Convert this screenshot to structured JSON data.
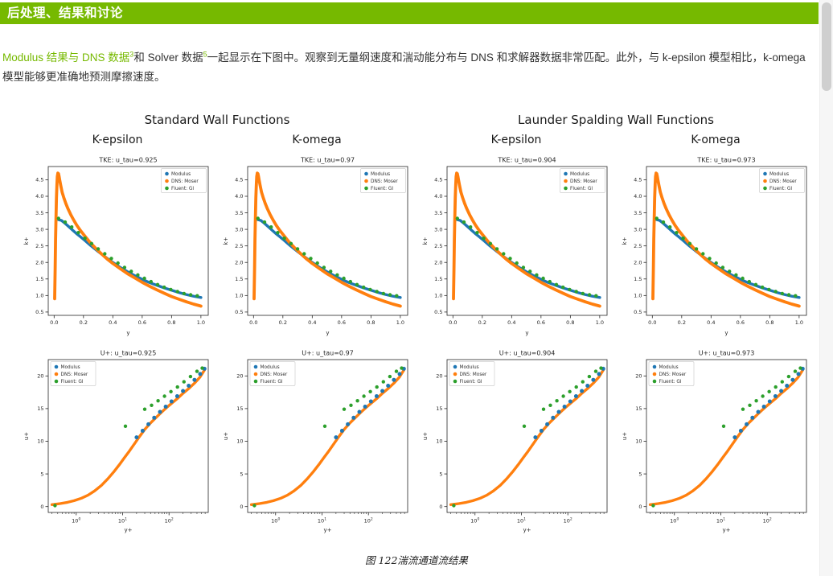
{
  "header": {
    "title": "后处理、结果和讨论"
  },
  "paragraph": {
    "link1": "Modulus 结果与 DNS 数据",
    "sup1": "3",
    "text2": "和 Solver 数据",
    "sup2": "5",
    "text3": "一起显示在下图中。观察到无量纲速度和湍动能分布与 DNS 和求解器数据非常匹配。此外，与 k-epsilon 模型相比，k-omega 模型能够更准确地预测摩擦速度。"
  },
  "figure": {
    "caption": "图 122湍流通道流结果",
    "group_titles": [
      "Standard Wall Functions",
      "Launder Spalding Wall Functions"
    ],
    "column_titles": [
      "K-epsilon",
      "K-omega",
      "K-epsilon",
      "K-omega"
    ]
  },
  "chart_data": {
    "type": "scatter",
    "layout": "2 rows x 4 columns; all four columns in a row share the same series data",
    "colors": {
      "modulus": "#1f77b4",
      "dns": "#ff7f0e",
      "fluent": "#2ca02c"
    },
    "rows": [
      {
        "name": "tke",
        "titles": [
          "TKE: u_tau=0.925",
          "TKE: u_tau=0.97",
          "TKE: u_tau=0.904",
          "TKE: u_tau=0.973"
        ],
        "xlabel": "y",
        "ylabel": "k+",
        "xscale": "linear",
        "xlim": [
          -0.04,
          1.05
        ],
        "ylim": [
          0.4,
          4.9
        ],
        "xticks": [
          0.0,
          0.2,
          0.4,
          0.6,
          0.8,
          1.0
        ],
        "yticks": [
          0.5,
          1.0,
          1.5,
          2.0,
          2.5,
          3.0,
          3.5,
          4.0,
          4.5
        ],
        "ytick_decimals": 1,
        "legend_position": "ne",
        "legend": [
          {
            "label": "Modulus",
            "color": "#1f77b4"
          },
          {
            "label": "DNS: Moser",
            "color": "#ff7f0e"
          },
          {
            "label": "Fluent: GI",
            "color": "#2ca02c"
          }
        ],
        "series": [
          {
            "name": "Modulus",
            "color": "#1f77b4",
            "style": "line",
            "width": 3.4,
            "x": [
              0.025,
              0.05,
              0.075,
              0.1,
              0.125,
              0.15,
              0.175,
              0.2,
              0.25,
              0.3,
              0.35,
              0.4,
              0.45,
              0.5,
              0.55,
              0.6,
              0.65,
              0.7,
              0.75,
              0.8,
              0.85,
              0.9,
              0.95,
              1.0
            ],
            "y": [
              3.3,
              3.27,
              3.18,
              3.08,
              2.98,
              2.88,
              2.79,
              2.7,
              2.51,
              2.33,
              2.16,
              2.0,
              1.85,
              1.72,
              1.6,
              1.49,
              1.39,
              1.31,
              1.23,
              1.16,
              1.09,
              1.03,
              0.98,
              0.94
            ]
          },
          {
            "name": "DNS: Moser",
            "color": "#ff7f0e",
            "style": "line",
            "width": 3.8,
            "x": [
              0.004,
              0.007,
              0.01,
              0.013,
              0.016,
              0.019,
              0.022,
              0.026,
              0.03,
              0.034,
              0.038,
              0.045,
              0.055,
              0.065,
              0.08,
              0.095,
              0.115,
              0.135,
              0.155,
              0.175,
              0.2,
              0.24,
              0.28,
              0.32,
              0.36,
              0.4,
              0.45,
              0.5,
              0.55,
              0.6,
              0.65,
              0.7,
              0.75,
              0.8,
              0.85,
              0.9,
              0.95,
              1.0
            ],
            "y": [
              0.9,
              1.8,
              2.7,
              3.4,
              3.95,
              4.35,
              4.6,
              4.7,
              4.68,
              4.6,
              4.5,
              4.33,
              4.12,
              3.97,
              3.78,
              3.62,
              3.43,
              3.27,
              3.12,
              2.99,
              2.85,
              2.63,
              2.44,
              2.27,
              2.11,
              1.97,
              1.81,
              1.66,
              1.53,
              1.4,
              1.28,
              1.17,
              1.07,
              0.97,
              0.89,
              0.81,
              0.74,
              0.68
            ]
          },
          {
            "name": "Fluent: GI",
            "color": "#2ca02c",
            "style": "dots",
            "r": 2.2,
            "x": [
              0.03,
              0.075,
              0.12,
              0.165,
              0.21,
              0.255,
              0.3,
              0.345,
              0.39,
              0.435,
              0.48,
              0.525,
              0.57,
              0.615,
              0.66,
              0.705,
              0.75,
              0.795,
              0.84,
              0.885,
              0.93,
              0.975
            ],
            "y": [
              3.33,
              3.22,
              3.07,
              2.9,
              2.73,
              2.57,
              2.41,
              2.26,
              2.12,
              1.98,
              1.85,
              1.73,
              1.62,
              1.52,
              1.42,
              1.33,
              1.25,
              1.18,
              1.12,
              1.06,
              1.02,
              0.99
            ]
          }
        ]
      },
      {
        "name": "uplus",
        "titles": [
          "U+: u_tau=0.925",
          "U+: u_tau=0.97",
          "U+: u_tau=0.904",
          "U+: u_tau=0.973"
        ],
        "xlabel": "y+",
        "ylabel": "u+",
        "xscale": "log",
        "xlim": [
          0.25,
          700
        ],
        "ylim": [
          -0.9,
          22.5
        ],
        "yticks": [
          0,
          5,
          10,
          15,
          20
        ],
        "ytick_decimals": 0,
        "legend_position": "nw",
        "legend": [
          {
            "label": "Modulus",
            "color": "#1f77b4"
          },
          {
            "label": "DNS: Moser",
            "color": "#ff7f0e"
          },
          {
            "label": "Fluent: GI",
            "color": "#2ca02c"
          }
        ],
        "series": [
          {
            "name": "DNS: Moser",
            "color": "#ff7f0e",
            "style": "line",
            "width": 3.4,
            "x": [
              0.3,
              0.45,
              0.65,
              0.9,
              1.3,
              1.8,
              2.5,
              3.5,
              4.8,
              6.5,
              8.5,
              11,
              14,
              18,
              23,
              30,
              40,
              52,
              68,
              90,
              118,
              155,
              205,
              270,
              355,
              465,
              580
            ],
            "y": [
              0.3,
              0.45,
              0.65,
              0.9,
              1.28,
              1.75,
              2.4,
              3.25,
              4.25,
              5.35,
              6.4,
              7.5,
              8.5,
              9.6,
              10.7,
              11.8,
              12.8,
              13.6,
              14.4,
              15.2,
              15.9,
              16.6,
              17.4,
              18.1,
              18.9,
              19.8,
              20.9
            ]
          },
          {
            "name": "Modulus",
            "color": "#1f77b4",
            "style": "dots",
            "r": 2.5,
            "x": [
              20,
              27,
              36,
              48,
              64,
              85,
              113,
              150,
              200,
              266,
              354,
              470,
              580
            ],
            "y": [
              10.6,
              11.6,
              12.6,
              13.6,
              14.5,
              15.3,
              16.1,
              16.9,
              17.7,
              18.5,
              19.4,
              20.3,
              21.1
            ]
          },
          {
            "name": "Fluent: GI",
            "color": "#2ca02c",
            "style": "dots",
            "r": 2.2,
            "x": [
              0.35,
              11.5,
              30,
              42,
              58,
              80,
              110,
              152,
              210,
              290,
              400,
              520
            ],
            "y": [
              0.15,
              12.3,
              14.9,
              15.5,
              16.2,
              16.9,
              17.6,
              18.3,
              19.1,
              19.9,
              20.7,
              21.2
            ]
          }
        ]
      }
    ]
  }
}
